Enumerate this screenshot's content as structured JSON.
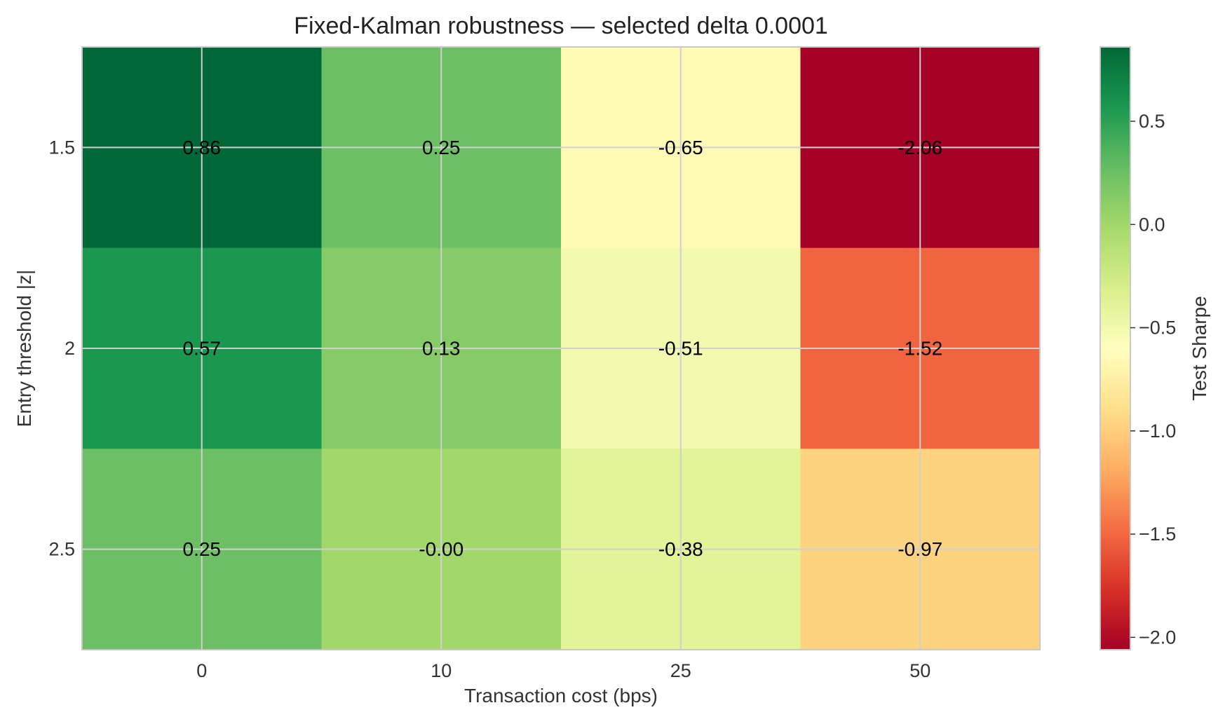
{
  "chart_data": {
    "type": "heatmap",
    "title": "Fixed-Kalman robustness — selected delta 0.0001",
    "xlabel": "Transaction cost (bps)",
    "ylabel": "Entry threshold |z|",
    "x_categories": [
      "0",
      "10",
      "25",
      "50"
    ],
    "y_categories": [
      "1.5",
      "2",
      "2.5"
    ],
    "values": [
      [
        0.86,
        0.25,
        -0.65,
        -2.06
      ],
      [
        0.57,
        0.13,
        -0.51,
        -1.52
      ],
      [
        0.25,
        -0.0,
        -0.38,
        -0.97
      ]
    ],
    "value_labels": [
      [
        "0.86",
        "0.25",
        "-0.65",
        "-2.06"
      ],
      [
        "0.57",
        "0.13",
        "-0.51",
        "-1.52"
      ],
      [
        "0.25",
        "-0.00",
        "-0.38",
        "-0.97"
      ]
    ],
    "colorbar": {
      "label": "Test Sharpe",
      "colormap": "RdYlGn",
      "range": [
        -2.06,
        0.86
      ],
      "ticks": [
        0.5,
        0.0,
        -0.5,
        -1.0,
        -1.5,
        -2.0
      ],
      "tick_labels": [
        "0.5",
        "0.0",
        "−0.5",
        "−1.0",
        "−1.5",
        "−2.0"
      ]
    },
    "grid": true
  }
}
